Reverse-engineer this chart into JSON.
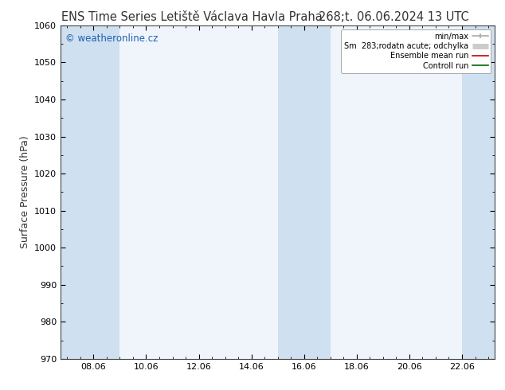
{
  "title_left": "ENS Time Series Letiště Václava Havla Praha",
  "title_right": "268;t. 06.06.2024 13 UTC",
  "ylabel": "Surface Pressure (hPa)",
  "ylim": [
    970,
    1060
  ],
  "yticks": [
    970,
    980,
    990,
    1000,
    1010,
    1020,
    1030,
    1040,
    1050,
    1060
  ],
  "xtick_labels": [
    "08.06",
    "10.06",
    "12.06",
    "14.06",
    "16.06",
    "18.06",
    "20.06",
    "22.06"
  ],
  "xtick_positions": [
    1.0,
    3.0,
    5.0,
    7.0,
    9.0,
    11.0,
    13.0,
    15.0
  ],
  "xlim": [
    -0.25,
    16.25
  ],
  "shaded_bands": [
    {
      "x_start": -0.25,
      "x_end": 2.0
    },
    {
      "x_start": 8.0,
      "x_end": 10.0
    },
    {
      "x_start": 15.0,
      "x_end": 16.25
    }
  ],
  "shade_color": "#cfe0f0",
  "watermark": "© weatheronline.cz",
  "legend_entries": [
    {
      "label": "min/max",
      "color": "#aaaaaa",
      "lw": 1.2
    },
    {
      "label": "Sm  283;rodatn acute; odchylka",
      "color": "#cccccc",
      "lw": 5
    },
    {
      "label": "Ensemble mean run",
      "color": "#cc0000",
      "lw": 1.2
    },
    {
      "label": "Controll run",
      "color": "#006600",
      "lw": 1.2
    }
  ],
  "bg_color": "#ffffff",
  "plot_bg_color": "#f0f5fb",
  "title_fontsize": 10.5,
  "tick_fontsize": 8,
  "ylabel_fontsize": 9,
  "watermark_color": "#2060b0"
}
